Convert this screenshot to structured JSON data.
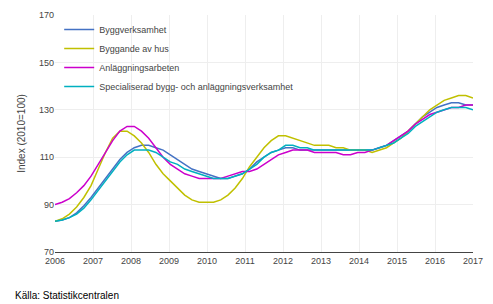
{
  "chart_data": {
    "type": "line",
    "ylabel": "Index (2010=100)",
    "source": "Källa: Statistikcentralen",
    "xlim": [
      2006,
      2017
    ],
    "xticks": [
      2006,
      2007,
      2008,
      2009,
      2010,
      2011,
      2012,
      2013,
      2014,
      2015,
      2016,
      2017
    ],
    "ylim": [
      70,
      170
    ],
    "yticks": [
      70,
      90,
      110,
      130,
      150,
      170
    ],
    "grid": true,
    "legend": "upper left",
    "x": [
      2006,
      2006.189655,
      2006.37931,
      2006.568966,
      2006.758621,
      2006.948276,
      2007.137931,
      2007.327586,
      2007.517241,
      2007.706897,
      2007.896552,
      2008.086207,
      2008.275862,
      2008.465517,
      2008.655172,
      2008.844828,
      2009.034483,
      2009.224138,
      2009.413793,
      2009.603448,
      2009.793103,
      2009.982759,
      2010.172414,
      2010.362069,
      2010.551724,
      2010.741379,
      2010.931034,
      2011.12069,
      2011.310345,
      2011.5,
      2011.689655,
      2011.87931,
      2012.068966,
      2012.258621,
      2012.448276,
      2012.637931,
      2012.827586,
      2013.017241,
      2013.206897,
      2013.396552,
      2013.586207,
      2013.775862,
      2013.965517,
      2014.155172,
      2014.344828,
      2014.534483,
      2014.724138,
      2014.913793,
      2015.103448,
      2015.293103,
      2015.482759,
      2015.672414,
      2015.862069,
      2016.051724,
      2016.241379,
      2016.431034,
      2016.62069,
      2016.810345,
      2017
    ],
    "series": [
      {
        "name": "Byggverksamhet",
        "color": "#4472c4",
        "values": [
          83,
          83.5,
          84.5,
          86.5,
          89.5,
          93,
          97,
          101,
          105,
          109,
          112,
          114,
          115,
          115,
          114,
          113,
          111,
          109,
          107,
          105,
          104,
          103,
          102,
          101,
          101,
          102,
          103,
          105,
          108,
          110,
          112,
          113,
          114,
          114,
          113,
          113,
          113,
          113,
          113,
          113,
          113,
          113,
          113,
          113,
          113,
          114,
          115,
          117,
          119,
          121,
          124,
          127,
          129,
          131,
          132,
          133,
          133,
          132,
          132
        ]
      },
      {
        "name": "Byggande av hus",
        "color": "#c0c000",
        "values": [
          83,
          84,
          86,
          89,
          93,
          98,
          105,
          112,
          118,
          121,
          121,
          119,
          116,
          112,
          107,
          103,
          100,
          97,
          94,
          92,
          91,
          91,
          91,
          92,
          94,
          97,
          101,
          106,
          110,
          114,
          117,
          119,
          119,
          118,
          117,
          116,
          115,
          115,
          115,
          114,
          114,
          113,
          113,
          113,
          112,
          113,
          114,
          116,
          118,
          121,
          124,
          127,
          130,
          132,
          134,
          135,
          136,
          136,
          135
        ]
      },
      {
        "name": "Anläggningsarbeten",
        "color": "#cc00cc",
        "values": [
          90,
          91,
          92.5,
          95,
          98,
          102,
          107,
          112,
          117,
          121,
          123,
          123,
          121,
          118,
          114,
          110,
          107,
          105,
          103,
          102,
          101,
          101,
          101,
          101,
          102,
          103,
          104,
          104,
          105,
          107,
          109,
          111,
          112,
          113,
          113,
          113,
          112,
          112,
          112,
          112,
          111,
          111,
          112,
          112,
          113,
          114,
          115,
          117,
          119,
          121,
          124,
          126,
          128,
          129,
          130,
          131,
          131,
          132,
          132
        ]
      },
      {
        "name": "Specialiserad bygg- och anläggningsverksamhet",
        "color": "#00b0c0",
        "values": [
          83,
          83.5,
          84.5,
          86,
          88.5,
          92,
          96,
          100,
          104,
          108,
          111,
          113,
          113,
          113,
          112,
          110,
          108,
          107,
          105,
          104,
          103,
          102,
          101,
          101,
          101,
          102,
          103,
          105,
          107,
          110,
          112,
          113,
          115,
          115,
          114,
          114,
          113,
          113,
          113,
          113,
          113,
          113,
          113,
          113,
          113,
          114,
          115,
          116,
          118,
          120,
          123,
          125,
          127,
          129,
          130,
          131,
          131,
          131,
          130
        ]
      }
    ]
  }
}
